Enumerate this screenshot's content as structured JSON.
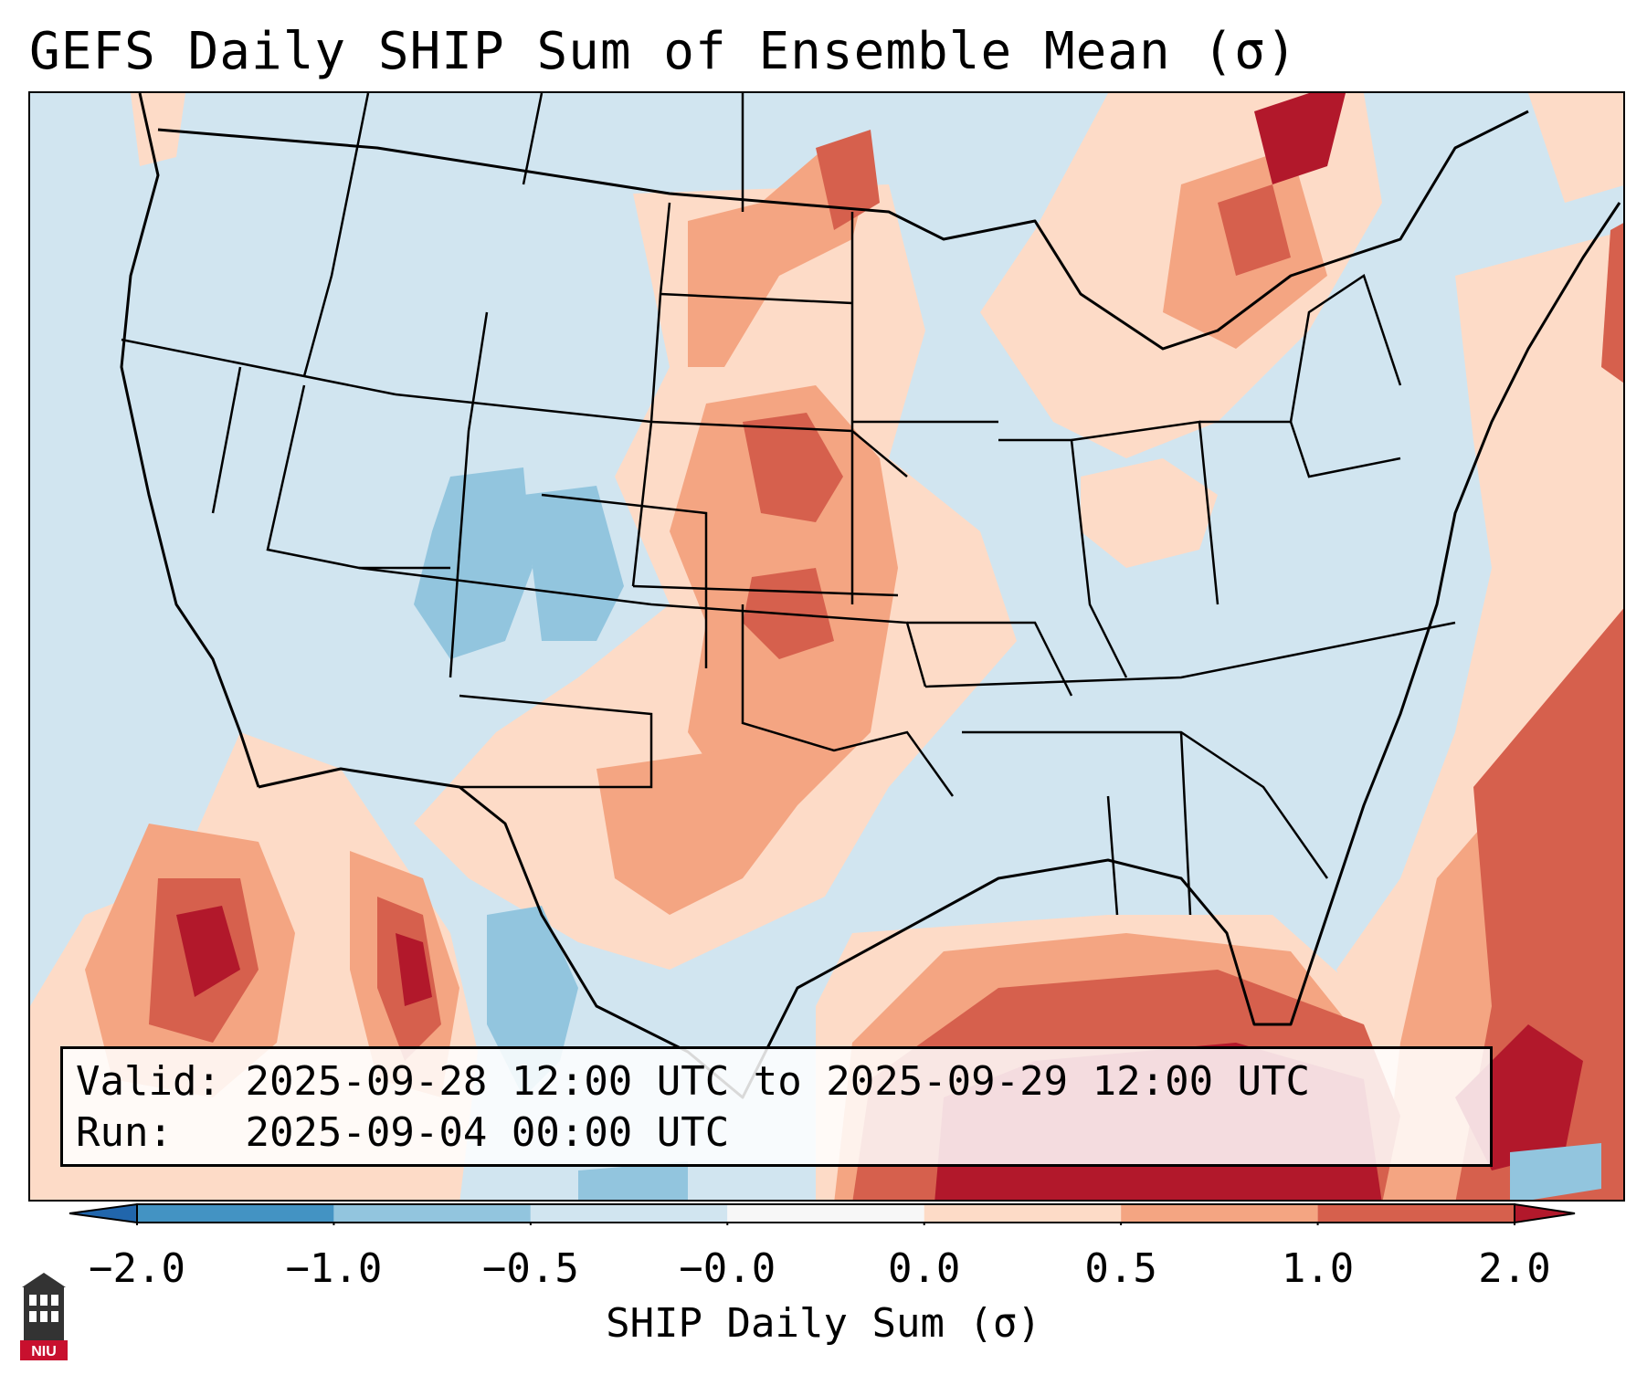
{
  "title": "GEFS Daily SHIP Sum of Ensemble Mean (σ)",
  "info": {
    "valid_label": "Valid:",
    "valid_value": "2025-09-28 12:00 UTC to 2025-09-29 12:00 UTC",
    "run_label": "Run:",
    "run_value": "2025-09-04 00:00 UTC"
  },
  "colorbar": {
    "label": "SHIP Daily Sum (σ)",
    "ticks": [
      "−2.0",
      "−1.0",
      "−0.5",
      "−0.0",
      "0.0",
      "0.5",
      "1.0",
      "2.0"
    ],
    "bins": [
      {
        "color": "#4393c3"
      },
      {
        "color": "#92c5de"
      },
      {
        "color": "#d1e5f0"
      },
      {
        "color": "#f7f7f7"
      },
      {
        "color": "#fddbc7"
      },
      {
        "color": "#f4a582"
      },
      {
        "color": "#d6604d"
      }
    ],
    "extend_low": "#2166ac",
    "extend_high": "#b2182b"
  },
  "map": {
    "region": "Contiguous United States",
    "background_color": "#d1e5f0",
    "anomaly_levels": [
      {
        "color": "#fddbc7"
      },
      {
        "color": "#f4a582"
      },
      {
        "color": "#d6604d"
      },
      {
        "color": "#b2182b"
      },
      {
        "color": "#92c5de"
      }
    ]
  },
  "logo": {
    "text": "NIU",
    "icon": "university-building-icon"
  }
}
